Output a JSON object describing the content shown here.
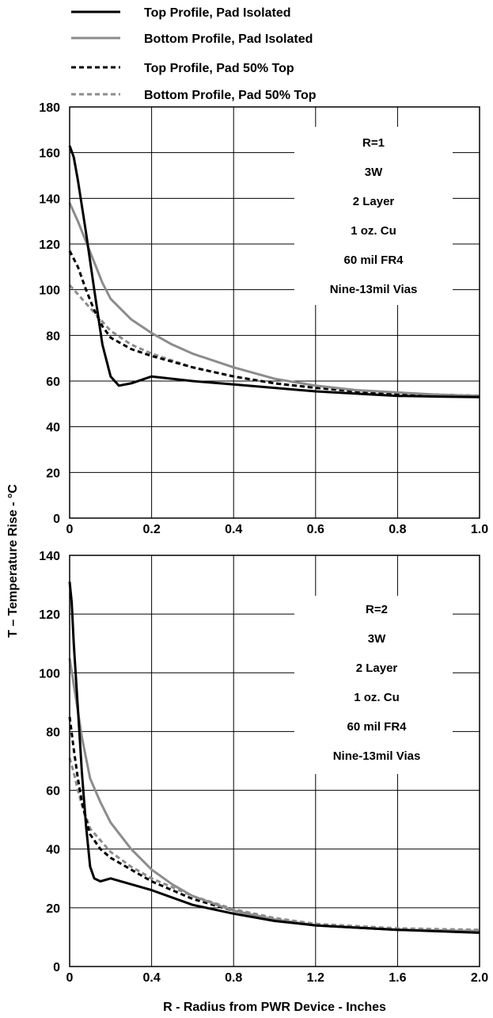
{
  "chart_data": {
    "type": "line",
    "ylabel": "T – Temperature Rise - °C",
    "xlabel": "R - Radius from PWR Device - Inches",
    "legend": {
      "placement": "top",
      "entries": [
        {
          "name": "Top Profile, Pad Isolated",
          "color": "#000000",
          "dash": "solid"
        },
        {
          "name": "Bottom Profile, Pad Isolated",
          "color": "#8c8c8c",
          "dash": "solid"
        },
        {
          "name": "Top Profile, Pad 50% Top",
          "color": "#000000",
          "dash": "dashed"
        },
        {
          "name": "Bottom Profile, Pad 50% Top",
          "color": "#8c8c8c",
          "dash": "dashed"
        }
      ]
    },
    "panels": [
      {
        "xlim": [
          0,
          1.0
        ],
        "ylim": [
          0,
          180
        ],
        "xticks": [
          "0",
          "0.2",
          "0.4",
          "0.6",
          "0.8",
          "1.0"
        ],
        "yticks": [
          "0",
          "20",
          "40",
          "60",
          "80",
          "100",
          "120",
          "140",
          "160",
          "180"
        ],
        "grid": true,
        "annotation": [
          "R=1",
          "3W",
          "2 Layer",
          "1 oz. Cu",
          "60 mil FR4",
          "Nine-13mil Vias"
        ],
        "series": [
          {
            "name": "Top Profile, Pad Isolated",
            "x": [
              0,
              0.01,
              0.02,
              0.04,
              0.06,
              0.08,
              0.1,
              0.12,
              0.15,
              0.2,
              0.3,
              0.4,
              0.5,
              0.6,
              0.7,
              0.8,
              0.9,
              1.0
            ],
            "y": [
              163,
              158,
              148,
              125,
              100,
              76,
              62,
              58,
              59,
              62,
              60,
              58.5,
              57,
              55.5,
              54.5,
              53.5,
              53.2,
              53
            ]
          },
          {
            "name": "Bottom Profile, Pad Isolated",
            "x": [
              0,
              0.02,
              0.04,
              0.06,
              0.08,
              0.1,
              0.15,
              0.2,
              0.25,
              0.3,
              0.4,
              0.5,
              0.6,
              0.7,
              0.8,
              0.9,
              1.0
            ],
            "y": [
              138,
              130,
              121,
              112,
              103,
              96,
              87,
              81,
              76,
              72,
              66,
              61,
              58,
              56,
              55,
              54,
              53.5
            ]
          },
          {
            "name": "Top Profile, Pad 50% Top",
            "x": [
              0,
              0.02,
              0.04,
              0.06,
              0.08,
              0.1,
              0.15,
              0.2,
              0.3,
              0.4,
              0.5,
              0.6,
              0.7,
              0.8,
              0.9,
              1.0
            ],
            "y": [
              117,
              110,
              100,
              91,
              84,
              79,
              74,
              71,
              66,
              62,
              59,
              57,
              55.5,
              54.5,
              54,
              53.5
            ]
          },
          {
            "name": "Bottom Profile, Pad 50% Top",
            "x": [
              0,
              0.02,
              0.04,
              0.06,
              0.08,
              0.1,
              0.15,
              0.2,
              0.3,
              0.4,
              0.5,
              0.6,
              0.7,
              0.8,
              0.9,
              1.0
            ],
            "y": [
              102,
              98,
              94,
              90,
              86,
              82,
              76,
              72,
              66,
              62,
              59,
              57,
              55.5,
              54.5,
              54,
              53.5
            ]
          }
        ]
      },
      {
        "xlim": [
          0,
          2.0
        ],
        "ylim": [
          0,
          140
        ],
        "xticks": [
          "0",
          "0.4",
          "0.8",
          "1.2",
          "1.6",
          "2.0"
        ],
        "yticks": [
          "0",
          "20",
          "40",
          "60",
          "80",
          "100",
          "120",
          "140"
        ],
        "grid": true,
        "annotation": [
          "R=2",
          "3W",
          "2 Layer",
          "1 oz. Cu",
          "60 mil FR4",
          "Nine-13mil Vias"
        ],
        "series": [
          {
            "name": "Top Profile, Pad Isolated",
            "x": [
              0,
              0.01,
              0.02,
              0.04,
              0.06,
              0.08,
              0.1,
              0.12,
              0.15,
              0.2,
              0.3,
              0.4,
              0.6,
              0.8,
              1.0,
              1.2,
              1.6,
              2.0
            ],
            "y": [
              131,
              124,
              110,
              88,
              66,
              48,
              34,
              30,
              29,
              30,
              28,
              26,
              21,
              18,
              15.5,
              14,
              12.5,
              11.5
            ]
          },
          {
            "name": "Bottom Profile, Pad Isolated",
            "x": [
              0,
              0.02,
              0.04,
              0.06,
              0.08,
              0.1,
              0.15,
              0.2,
              0.3,
              0.4,
              0.5,
              0.6,
              0.8,
              1.0,
              1.2,
              1.6,
              2.0
            ],
            "y": [
              105,
              96,
              87,
              78,
              71,
              64,
              56,
              49,
              40,
              33,
              28,
              24,
              19,
              16,
              14,
              12.5,
              12
            ]
          },
          {
            "name": "Top Profile, Pad 50% Top",
            "x": [
              0,
              0.02,
              0.04,
              0.06,
              0.08,
              0.1,
              0.15,
              0.2,
              0.3,
              0.4,
              0.5,
              0.6,
              0.8,
              1.0,
              1.2,
              1.6,
              2.0
            ],
            "y": [
              85,
              74,
              64,
              56,
              50,
              45,
              40,
              37,
              33,
              29,
              26,
              23,
              19,
              16,
              14,
              12.5,
              12
            ]
          },
          {
            "name": "Bottom Profile, Pad 50% Top",
            "x": [
              0,
              0.02,
              0.04,
              0.06,
              0.08,
              0.1,
              0.15,
              0.2,
              0.3,
              0.4,
              0.5,
              0.6,
              0.8,
              1.0,
              1.2,
              1.6,
              2.0
            ],
            "y": [
              71,
              66,
              60,
              55,
              51,
              47,
              43,
              39,
              34,
              30,
              27,
              24,
              19.5,
              16.5,
              14.5,
              13,
              12.5
            ]
          }
        ]
      }
    ]
  }
}
